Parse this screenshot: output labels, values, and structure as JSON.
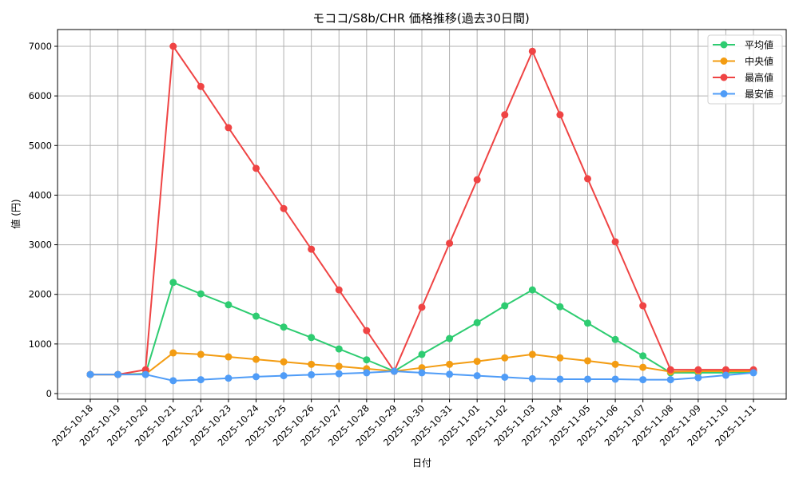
{
  "chart_data": {
    "type": "line",
    "title": "モココ/S8b/CHR 価格推移(過去30日間)",
    "xlabel": "日付",
    "ylabel": "値 (円)",
    "ylim": [
      -100,
      7350
    ],
    "yticks": [
      0,
      1000,
      2000,
      3000,
      4000,
      5000,
      6000,
      7000
    ],
    "grid": true,
    "legend_position": "upper right",
    "categories": [
      "2025-10-18",
      "2025-10-19",
      "2025-10-20",
      "2025-10-21",
      "2025-10-22",
      "2025-10-23",
      "2025-10-24",
      "2025-10-25",
      "2025-10-26",
      "2025-10-27",
      "2025-10-28",
      "2025-10-29",
      "2025-10-30",
      "2025-10-31",
      "2025-11-01",
      "2025-11-02",
      "2025-11-03",
      "2025-11-04",
      "2025-11-05",
      "2025-11-06",
      "2025-11-07",
      "2025-11-08",
      "2025-11-09",
      "2025-11-10",
      "2025-11-11"
    ],
    "series": [
      {
        "name": "平均値",
        "color": "#2ecc71",
        "values": [
          385,
          385,
          400,
          2240,
          2010,
          1790,
          1560,
          1340,
          1130,
          900,
          680,
          450,
          790,
          1110,
          1430,
          1770,
          2090,
          1750,
          1420,
          1090,
          760,
          420,
          420,
          420,
          430
        ]
      },
      {
        "name": "中央値",
        "color": "#f39c12",
        "values": [
          385,
          385,
          390,
          820,
          790,
          740,
          690,
          640,
          590,
          550,
          500,
          450,
          520,
          590,
          650,
          720,
          790,
          720,
          660,
          590,
          530,
          440,
          450,
          450,
          450
        ]
      },
      {
        "name": "最高値",
        "color": "#ef4444",
        "values": [
          385,
          385,
          480,
          7000,
          6190,
          5360,
          4540,
          3730,
          2910,
          2090,
          1270,
          450,
          1740,
          3030,
          4310,
          5620,
          6900,
          5620,
          4330,
          3060,
          1770,
          480,
          480,
          480,
          480
        ]
      },
      {
        "name": "最安値",
        "color": "#4f9cf7",
        "values": [
          385,
          385,
          385,
          260,
          280,
          310,
          340,
          360,
          380,
          400,
          420,
          450,
          420,
          390,
          360,
          330,
          300,
          290,
          290,
          290,
          280,
          280,
          320,
          370,
          420
        ]
      }
    ]
  }
}
